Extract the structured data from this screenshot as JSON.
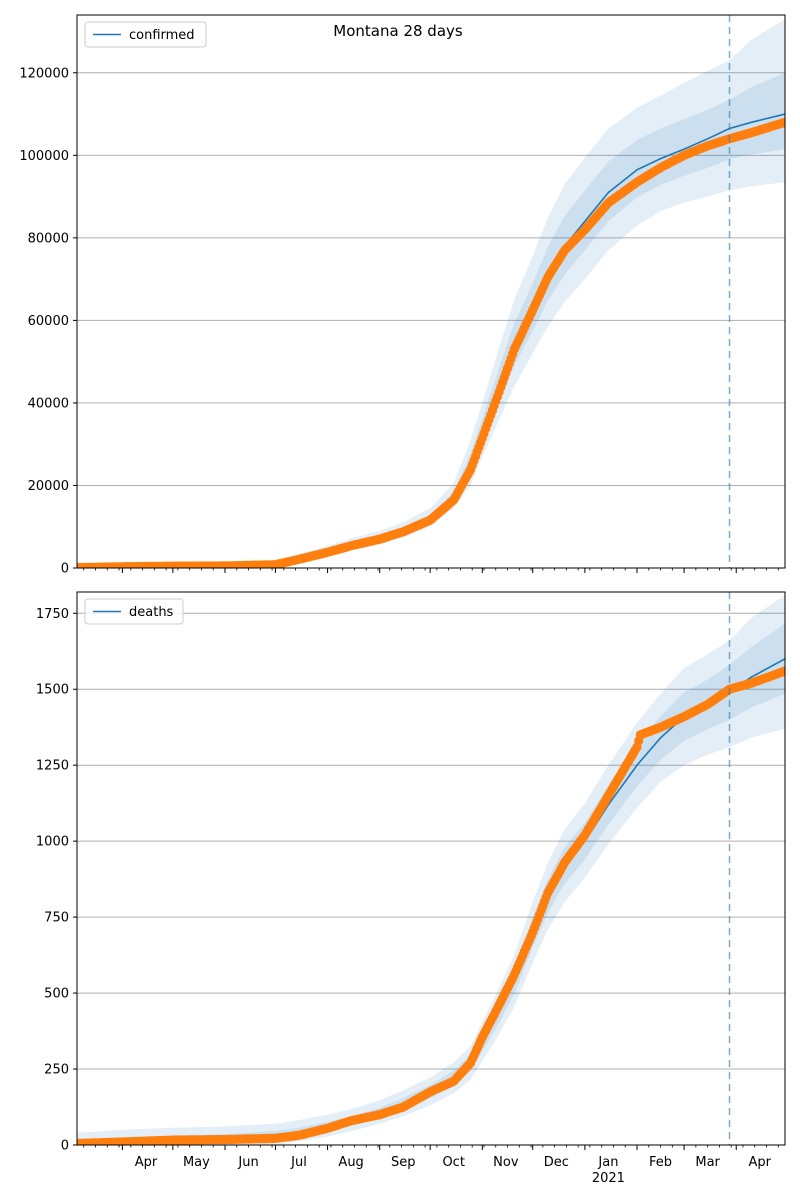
{
  "figure_title": "Montana 28 days",
  "colors": {
    "model": "#1f77b4",
    "observed": "#ff7f0e",
    "band": "#1f77b4",
    "grid": "#b0b0b0",
    "cutoff": "#1f77b4"
  },
  "x_tick_labels": [
    "Apr",
    "May",
    "Jun",
    "Jul",
    "Aug",
    "Sep",
    "Oct",
    "Nov",
    "Dec",
    "Jan",
    "Feb",
    "Mar",
    "Apr"
  ],
  "x_year_label": "2021",
  "chart_data": [
    {
      "type": "line",
      "title": "Montana 28 days",
      "xlabel": "",
      "ylabel": "",
      "x_range": [
        "2020-03-05",
        "2021-04-30"
      ],
      "ylim": [
        0,
        134000
      ],
      "yticks": [
        0,
        20000,
        40000,
        60000,
        80000,
        100000,
        120000
      ],
      "ytick_labels": [
        "0",
        "20000",
        "40000",
        "60000",
        "80000",
        "100000",
        "120000"
      ],
      "grid": "horizontal",
      "legend": {
        "entries": [
          "confirmed"
        ],
        "placement": "top-left"
      },
      "forecast_start": "2021-03-28",
      "series": [
        {
          "name": "confirmed",
          "role": "model",
          "x": [
            "2020-03-05",
            "2020-04-01",
            "2020-05-01",
            "2020-06-01",
            "2020-07-01",
            "2020-07-15",
            "2020-08-01",
            "2020-08-15",
            "2020-09-01",
            "2020-09-15",
            "2020-10-01",
            "2020-10-15",
            "2020-10-25",
            "2020-11-01",
            "2020-11-10",
            "2020-11-20",
            "2020-12-01",
            "2020-12-10",
            "2020-12-20",
            "2021-01-01",
            "2021-01-15",
            "2021-02-01",
            "2021-02-15",
            "2021-03-01",
            "2021-03-15",
            "2021-03-28",
            "2021-04-10",
            "2021-04-30"
          ],
          "y": [
            200,
            400,
            600,
            700,
            900,
            2200,
            4000,
            5600,
            7200,
            9000,
            12000,
            17000,
            25000,
            33000,
            43000,
            54000,
            63000,
            71000,
            78000,
            84000,
            91000,
            96500,
            99200,
            101500,
            104000,
            106500,
            108000,
            110000
          ],
          "band_lower_outer": [
            0,
            0,
            0,
            0,
            300,
            1200,
            3000,
            4300,
            5700,
            7400,
            10000,
            14500,
            20000,
            27000,
            35000,
            44000,
            52000,
            58500,
            64500,
            70000,
            77000,
            83000,
            86500,
            88500,
            90000,
            91500,
            92500,
            93500
          ],
          "band_lower_inner": [
            100,
            200,
            300,
            400,
            600,
            1700,
            3500,
            5000,
            6500,
            8200,
            11000,
            15700,
            22500,
            30000,
            39000,
            49000,
            57500,
            64800,
            71200,
            77000,
            84000,
            89800,
            92800,
            95000,
            97000,
            99000,
            100200,
            101500
          ],
          "band_upper_inner": [
            300,
            600,
            900,
            1000,
            1200,
            2700,
            4600,
            6300,
            8000,
            9900,
            13000,
            18500,
            27800,
            36300,
            47300,
            59200,
            69000,
            77800,
            85300,
            91500,
            98500,
            103700,
            106500,
            108700,
            111000,
            113500,
            116500,
            120000
          ],
          "band_upper_outer": [
            500,
            900,
            1300,
            1500,
            1700,
            3400,
            5400,
            7200,
            9000,
            11100,
            14500,
            20500,
            31000,
            40000,
            52000,
            65000,
            75500,
            85000,
            93000,
            99500,
            106500,
            111500,
            114500,
            117500,
            120500,
            123000,
            128000,
            133000
          ]
        },
        {
          "name": "observed confirmed",
          "role": "observed",
          "x": [
            "2020-03-05",
            "2020-04-01",
            "2020-05-01",
            "2020-06-01",
            "2020-07-01",
            "2020-07-15",
            "2020-08-01",
            "2020-08-15",
            "2020-09-01",
            "2020-09-15",
            "2020-10-01",
            "2020-10-15",
            "2020-10-25",
            "2020-11-01",
            "2020-11-10",
            "2020-11-20",
            "2020-12-01",
            "2020-12-10",
            "2020-12-20",
            "2021-01-01",
            "2021-01-15",
            "2021-02-01",
            "2021-02-15",
            "2021-03-01",
            "2021-03-15",
            "2021-03-28",
            "2021-04-10",
            "2021-04-30"
          ],
          "y": [
            100,
            300,
            450,
            500,
            800,
            2100,
            3800,
            5400,
            7000,
            8800,
            11600,
            16500,
            23800,
            31500,
            41500,
            53000,
            62500,
            70500,
            77000,
            82000,
            88500,
            93500,
            97000,
            100000,
            102300,
            104000,
            105500,
            108000
          ]
        }
      ]
    },
    {
      "type": "line",
      "title": "",
      "xlabel": "",
      "ylabel": "",
      "x_range": [
        "2020-03-05",
        "2021-04-30"
      ],
      "ylim": [
        0,
        1820
      ],
      "yticks": [
        0,
        250,
        500,
        750,
        1000,
        1250,
        1500,
        1750
      ],
      "ytick_labels": [
        "0",
        "250",
        "500",
        "750",
        "1000",
        "1250",
        "1500",
        "1750"
      ],
      "grid": "horizontal",
      "legend": {
        "entries": [
          "deaths"
        ],
        "placement": "top-left"
      },
      "forecast_start": "2021-03-28",
      "series": [
        {
          "name": "deaths",
          "role": "model",
          "x": [
            "2020-03-05",
            "2020-04-01",
            "2020-05-01",
            "2020-06-01",
            "2020-07-01",
            "2020-07-15",
            "2020-08-01",
            "2020-08-15",
            "2020-09-01",
            "2020-09-15",
            "2020-10-01",
            "2020-10-15",
            "2020-10-25",
            "2020-11-01",
            "2020-11-10",
            "2020-11-20",
            "2020-12-01",
            "2020-12-10",
            "2020-12-20",
            "2021-01-01",
            "2021-01-15",
            "2021-02-01",
            "2021-02-15",
            "2021-03-01",
            "2021-03-15",
            "2021-03-28",
            "2021-04-10",
            "2021-04-30"
          ],
          "y": [
            8,
            15,
            22,
            25,
            32,
            42,
            60,
            78,
            105,
            135,
            175,
            220,
            270,
            340,
            430,
            540,
            700,
            820,
            920,
            1000,
            1120,
            1250,
            1340,
            1410,
            1450,
            1490,
            1540,
            1600
          ],
          "band_lower_outer": [
            0,
            0,
            0,
            0,
            0,
            12,
            28,
            45,
            70,
            95,
            130,
            170,
            215,
            275,
            355,
            455,
            600,
            710,
            800,
            880,
            990,
            1110,
            1195,
            1250,
            1285,
            1310,
            1340,
            1370
          ],
          "band_lower_inner": [
            2,
            6,
            10,
            12,
            18,
            27,
            44,
            62,
            88,
            115,
            153,
            195,
            243,
            308,
            392,
            497,
            650,
            765,
            860,
            940,
            1055,
            1180,
            1268,
            1330,
            1368,
            1400,
            1440,
            1485
          ],
          "band_upper_inner": [
            14,
            24,
            32,
            36,
            46,
            57,
            76,
            94,
            122,
            155,
            197,
            245,
            297,
            372,
            468,
            583,
            750,
            875,
            980,
            1060,
            1185,
            1320,
            1412,
            1490,
            1532,
            1580,
            1640,
            1715
          ],
          "band_upper_outer": [
            40,
            50,
            57,
            61,
            70,
            82,
            100,
            118,
            147,
            180,
            222,
            272,
            325,
            405,
            505,
            625,
            800,
            930,
            1040,
            1125,
            1250,
            1390,
            1485,
            1570,
            1615,
            1660,
            1735,
            1810
          ]
        },
        {
          "name": "observed deaths",
          "role": "observed",
          "x": [
            "2020-03-05",
            "2020-04-01",
            "2020-05-01",
            "2020-06-01",
            "2020-07-01",
            "2020-07-15",
            "2020-08-01",
            "2020-08-15",
            "2020-09-01",
            "2020-09-15",
            "2020-10-01",
            "2020-10-15",
            "2020-10-25",
            "2020-11-01",
            "2020-11-10",
            "2020-11-20",
            "2020-12-01",
            "2020-12-10",
            "2020-12-20",
            "2021-01-01",
            "2021-01-15",
            "2021-02-01",
            "2021-02-03",
            "2021-02-15",
            "2021-03-01",
            "2021-03-15",
            "2021-03-28",
            "2021-04-10",
            "2021-04-30"
          ],
          "y": [
            5,
            10,
            16,
            18,
            22,
            32,
            55,
            80,
            100,
            125,
            175,
            210,
            270,
            355,
            450,
            560,
            700,
            830,
            930,
            1020,
            1150,
            1310,
            1350,
            1375,
            1410,
            1450,
            1500,
            1520,
            1560
          ]
        }
      ]
    }
  ]
}
